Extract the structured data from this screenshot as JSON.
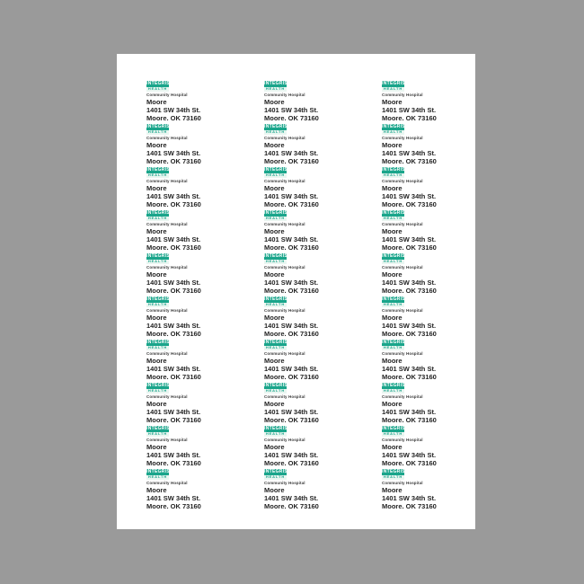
{
  "canvas": {
    "background_color": "#9a9a9a"
  },
  "sheet": {
    "background_color": "#ffffff"
  },
  "grid": {
    "rows": 10,
    "columns": 3
  },
  "label": {
    "logo": {
      "primary": "INTEGRIS",
      "secondary": "HEALTH",
      "subtitle": "Community Hospital",
      "primary_color": "#1aa58b",
      "band_color": "#eaf6f1",
      "band_text_color": "#1aa58b"
    },
    "address": {
      "name": "Moore",
      "street": "1401 SW 34th St.",
      "city_state_zip": "Moore, OK 73160"
    },
    "text_color": "#232323"
  }
}
